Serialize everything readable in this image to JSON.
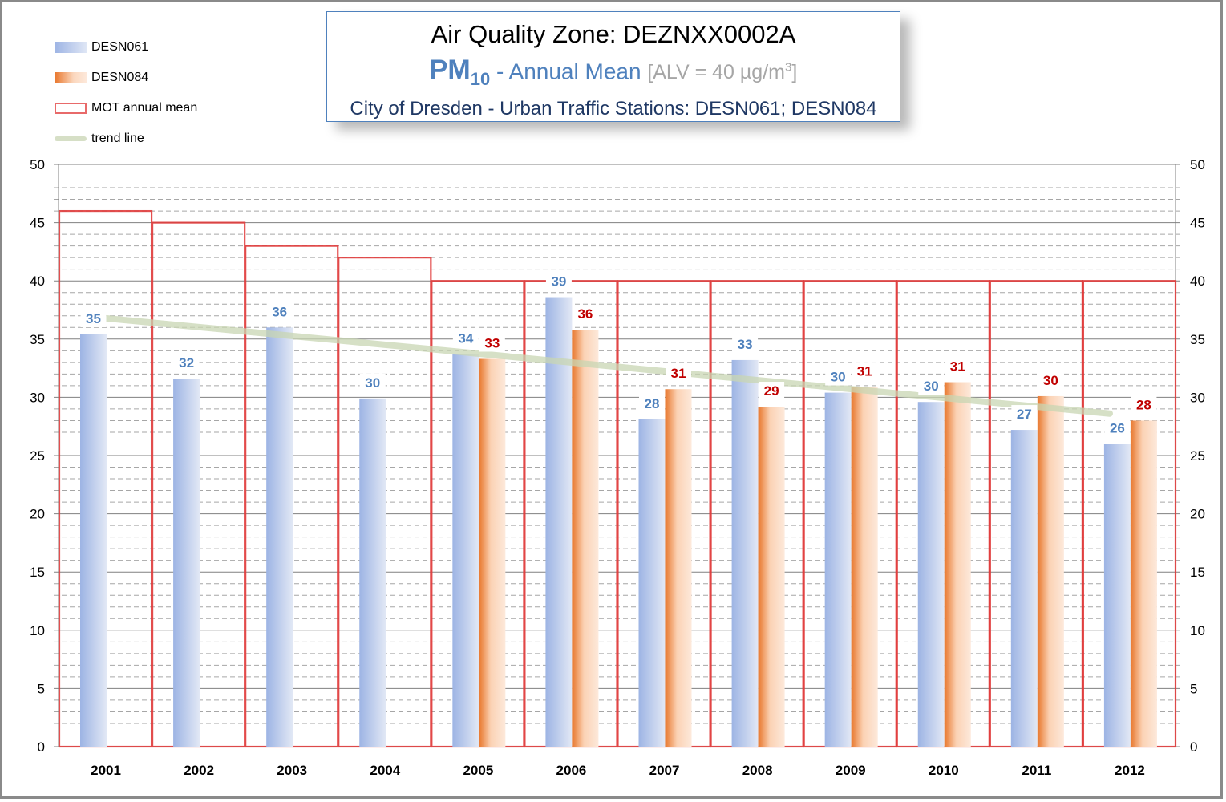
{
  "title": {
    "line1": "Air Quality Zone: DEZNXX0002A",
    "pm": "PM",
    "pm_sub": "10",
    "subtitle": " - Annual Mean ",
    "alv": "[ALV = 40 µg/m",
    "alv_sup": "3",
    "alv_end": "]",
    "line3": "City of Dresden - Urban Traffic Stations: DESN061; DESN084"
  },
  "legend": {
    "items": [
      {
        "label": "DESN061",
        "kind": "blue-bar"
      },
      {
        "label": "DESN084",
        "kind": "orange-bar"
      },
      {
        "label": "MOT annual mean",
        "kind": "red-outline"
      },
      {
        "label": "trend line",
        "kind": "green-line"
      }
    ]
  },
  "colors": {
    "desn061": "#9db4e4",
    "desn084": "#e8762b",
    "mot": "#e03c3c",
    "trend": "#c9d6b3",
    "label_blue": "#4f81bd",
    "label_red": "#c00000"
  },
  "chart_data": {
    "type": "bar",
    "title": "Air Quality Zone: DEZNXX0002A",
    "subtitle": "PM10 - Annual Mean [ALV = 40 µg/m3]",
    "categories": [
      "2001",
      "2002",
      "2003",
      "2004",
      "2005",
      "2006",
      "2007",
      "2008",
      "2009",
      "2010",
      "2011",
      "2012"
    ],
    "series": [
      {
        "name": "DESN061",
        "values": [
          35.4,
          31.6,
          36.0,
          29.9,
          33.7,
          38.6,
          28.1,
          33.2,
          30.4,
          29.6,
          27.2,
          26.0
        ],
        "labels": [
          "35",
          "32",
          "36",
          "30",
          "34",
          "39",
          "28",
          "33",
          "30",
          "30",
          "27",
          "26"
        ]
      },
      {
        "name": "DESN084",
        "values": [
          null,
          null,
          null,
          null,
          33.3,
          35.8,
          30.7,
          29.2,
          30.9,
          31.3,
          30.1,
          28.0
        ],
        "labels": [
          null,
          null,
          null,
          null,
          "33",
          "36",
          "31",
          "29",
          "31",
          "31",
          "30",
          "28"
        ]
      },
      {
        "name": "MOT annual mean",
        "values": [
          46,
          45,
          43,
          42,
          40,
          40,
          40,
          40,
          40,
          40,
          40,
          40
        ]
      },
      {
        "name": "trend line",
        "start": 36.9,
        "end": 28.6
      }
    ],
    "ylim": [
      0,
      50
    ],
    "yticks": [
      "0",
      "5",
      "10",
      "15",
      "20",
      "25",
      "30",
      "35",
      "40",
      "45",
      "50"
    ],
    "minor_grid_step": 1,
    "grid": true,
    "xlabel": "",
    "ylabel": "",
    "legend_position": "top-left"
  }
}
